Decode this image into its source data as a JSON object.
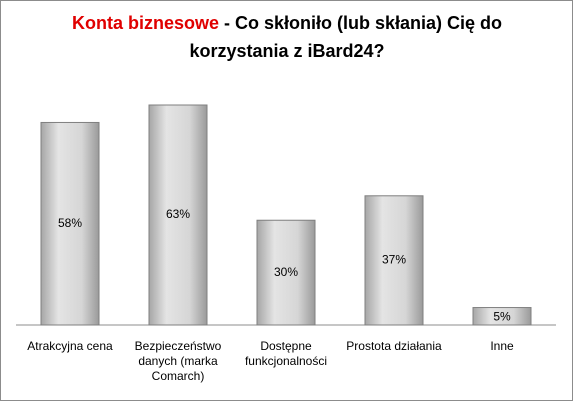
{
  "chart_data": {
    "type": "bar",
    "title": [
      "Konta biznesowe",
      "- Co skłoniło (lub skłania) Cię do",
      "korzystania z iBard24?"
    ],
    "categories": [
      [
        "Atrakcyjna cena"
      ],
      [
        "Bezpieczeństwo",
        "danych (marka",
        "Comarch)"
      ],
      [
        "Dostępne",
        "funkcjonalności"
      ],
      [
        "Prostota działania"
      ],
      [
        "Inne"
      ]
    ],
    "values": [
      58,
      63,
      30,
      37,
      5
    ],
    "value_labels": [
      "58%",
      "63%",
      "30%",
      "37%",
      "5%"
    ],
    "color": "#c8c8c8",
    "title_highlight_color": "#e00000"
  }
}
